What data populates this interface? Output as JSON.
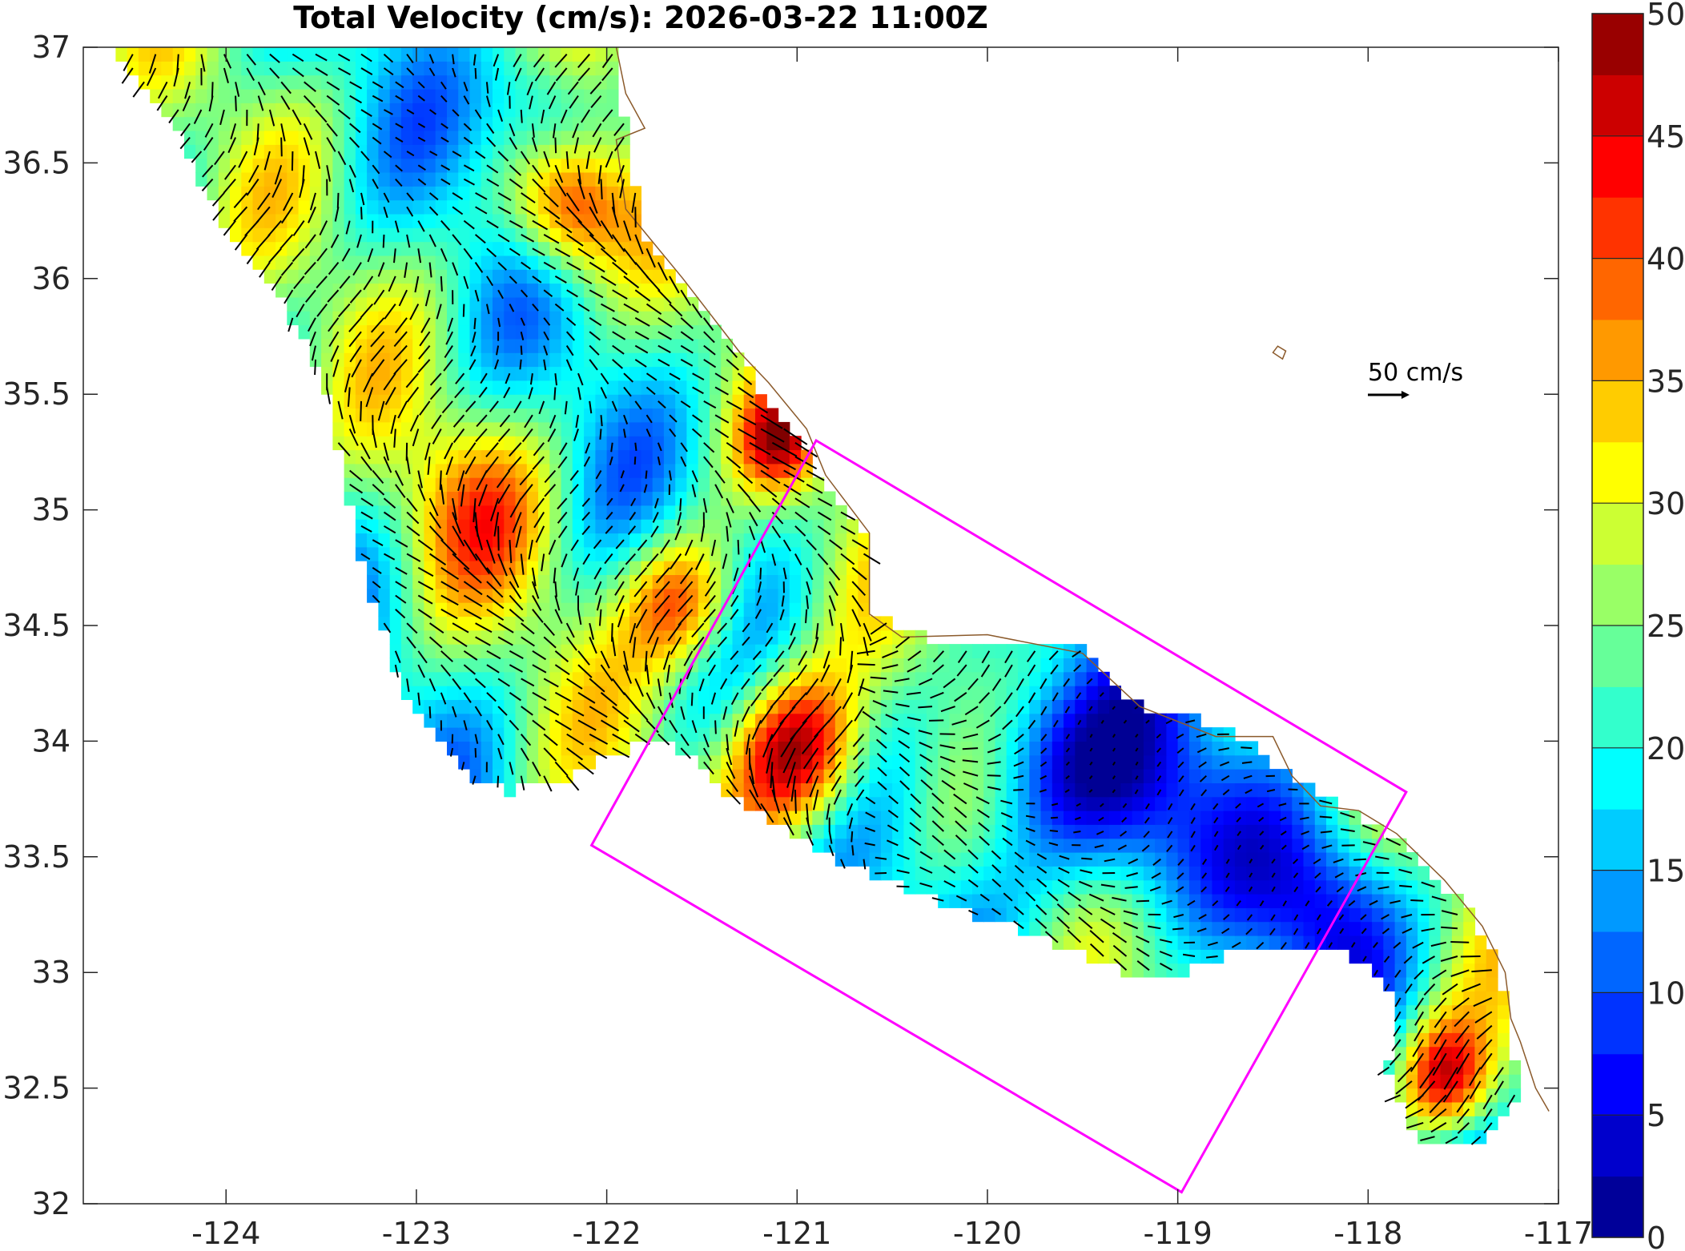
{
  "title": "Total Velocity (cm/s): 2026-03-22 11:00Z",
  "scale_label": "50 cm/s",
  "chart_data": {
    "type": "map",
    "xlim": [
      -124.75,
      -117
    ],
    "ylim": [
      32,
      37
    ],
    "x_ticks": [
      -124,
      -123,
      -122,
      -121,
      -120,
      -119,
      -118,
      -117
    ],
    "x_tick_labels": [
      "-124",
      "-123",
      "-122",
      "-121",
      "-120",
      "-119",
      "-118",
      "-117"
    ],
    "y_ticks": [
      32,
      32.5,
      33,
      33.5,
      34,
      34.5,
      35,
      35.5,
      36,
      36.5,
      37
    ],
    "y_tick_labels": [
      "32",
      "32.5",
      "33",
      "33.5",
      "34",
      "34.5",
      "35",
      "35.5",
      "36",
      "36.5",
      "37"
    ],
    "colorbar": {
      "range": [
        0,
        50
      ],
      "step": 2.5,
      "ticks": [
        0,
        5,
        10,
        15,
        20,
        25,
        30,
        35,
        40,
        45,
        50
      ],
      "tick_labels": [
        "0",
        "5",
        "10",
        "15",
        "20",
        "25",
        "30",
        "35",
        "40",
        "45",
        "50"
      ],
      "colormap": "jet"
    },
    "scale_arrow_cms": 50,
    "box_corners_lonlat": [
      [
        -120.9,
        35.3
      ],
      [
        -117.8,
        33.78
      ],
      [
        -118.98,
        32.05
      ],
      [
        -122.08,
        33.55
      ]
    ],
    "box_color": "#ff00ff",
    "coast_color": "#8b5a2b",
    "arrow_color": "#000000"
  }
}
